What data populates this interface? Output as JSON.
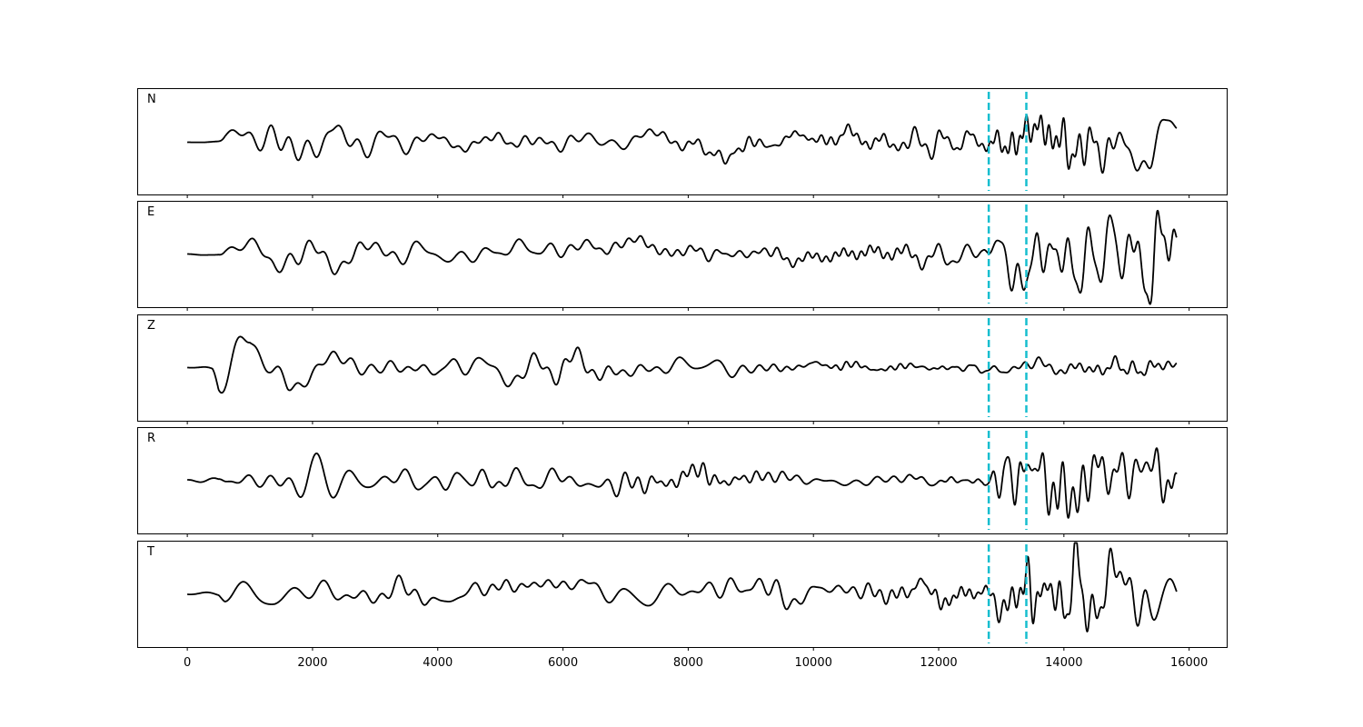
{
  "chart_data": {
    "type": "line",
    "panels": [
      {
        "name": "N",
        "label": "N"
      },
      {
        "name": "E",
        "label": "E"
      },
      {
        "name": "Z",
        "label": "Z"
      },
      {
        "name": "R",
        "label": "R"
      },
      {
        "name": "T",
        "label": "T"
      }
    ],
    "xlim": [
      -800,
      16600
    ],
    "x_range": [
      0,
      15800
    ],
    "ylim": [
      -1.2,
      1.2
    ],
    "x_ticks": [
      0,
      2000,
      4000,
      6000,
      8000,
      10000,
      12000,
      14000,
      16000
    ],
    "x_tick_labels": [
      "0",
      "2000",
      "4000",
      "6000",
      "8000",
      "10000",
      "12000",
      "14000",
      "16000"
    ],
    "y_ticks_visible": false,
    "shared_x": true,
    "markers": {
      "positions": [
        12800,
        13400
      ],
      "style": "dashed",
      "color": "#17becf"
    },
    "trace_color": "#000000",
    "grid": false,
    "envelopes": {
      "N": [
        [
          0,
          0.02
        ],
        [
          500,
          0.05
        ],
        [
          600,
          0.25
        ],
        [
          1200,
          0.4
        ],
        [
          1500,
          0.55
        ],
        [
          2000,
          0.4
        ],
        [
          3000,
          0.3
        ],
        [
          4000,
          0.2
        ],
        [
          5000,
          0.25
        ],
        [
          6000,
          0.35
        ],
        [
          7000,
          0.3
        ],
        [
          8000,
          0.35
        ],
        [
          9000,
          0.25
        ],
        [
          10000,
          0.2
        ],
        [
          11000,
          0.25
        ],
        [
          12000,
          0.3
        ],
        [
          12700,
          0.2
        ],
        [
          12800,
          0.35
        ],
        [
          13300,
          0.8
        ],
        [
          13500,
          0.7
        ],
        [
          13900,
          1.0
        ],
        [
          14500,
          0.85
        ],
        [
          15000,
          0.75
        ],
        [
          15400,
          1.0
        ],
        [
          15800,
          0.6
        ]
      ],
      "E": [
        [
          0,
          0.02
        ],
        [
          500,
          0.05
        ],
        [
          600,
          0.2
        ],
        [
          1000,
          0.35
        ],
        [
          1400,
          0.5
        ],
        [
          2200,
          0.35
        ],
        [
          3000,
          0.3
        ],
        [
          5000,
          0.25
        ],
        [
          6000,
          0.3
        ],
        [
          7000,
          0.3
        ],
        [
          8000,
          0.3
        ],
        [
          9000,
          0.25
        ],
        [
          10000,
          0.2
        ],
        [
          11000,
          0.25
        ],
        [
          12000,
          0.3
        ],
        [
          12700,
          0.2
        ],
        [
          12800,
          0.4
        ],
        [
          13300,
          0.9
        ],
        [
          13800,
          0.85
        ],
        [
          14500,
          0.9
        ],
        [
          15000,
          0.8
        ],
        [
          15300,
          1.0
        ],
        [
          15800,
          0.6
        ]
      ],
      "Z": [
        [
          0,
          0.02
        ],
        [
          400,
          0.05
        ],
        [
          500,
          0.4
        ],
        [
          800,
          0.7
        ],
        [
          1000,
          0.95
        ],
        [
          1300,
          0.6
        ],
        [
          1600,
          0.95
        ],
        [
          2000,
          0.45
        ],
        [
          3000,
          0.25
        ],
        [
          4000,
          0.2
        ],
        [
          5000,
          0.3
        ],
        [
          5800,
          0.35
        ],
        [
          6000,
          0.45
        ],
        [
          7000,
          0.2
        ],
        [
          8000,
          0.25
        ],
        [
          9000,
          0.15
        ],
        [
          10000,
          0.12
        ],
        [
          11000,
          0.1
        ],
        [
          12000,
          0.08
        ],
        [
          13000,
          0.12
        ],
        [
          14000,
          0.18
        ],
        [
          15000,
          0.2
        ],
        [
          15800,
          0.18
        ]
      ],
      "R": [
        [
          0,
          0.02
        ],
        [
          500,
          0.05
        ],
        [
          600,
          0.2
        ],
        [
          1200,
          0.35
        ],
        [
          1500,
          0.5
        ],
        [
          2000,
          0.35
        ],
        [
          3000,
          0.3
        ],
        [
          4000,
          0.2
        ],
        [
          5000,
          0.3
        ],
        [
          6000,
          0.3
        ],
        [
          7000,
          0.25
        ],
        [
          8000,
          0.3
        ],
        [
          9000,
          0.2
        ],
        [
          10000,
          0.15
        ],
        [
          11000,
          0.12
        ],
        [
          12000,
          0.1
        ],
        [
          12700,
          0.08
        ],
        [
          12800,
          0.3
        ],
        [
          13300,
          0.75
        ],
        [
          13500,
          0.6
        ],
        [
          13900,
          1.0
        ],
        [
          14500,
          0.75
        ],
        [
          15000,
          0.7
        ],
        [
          15400,
          0.9
        ],
        [
          15800,
          0.55
        ]
      ],
      "T": [
        [
          0,
          0.02
        ],
        [
          500,
          0.05
        ],
        [
          600,
          0.2
        ],
        [
          1000,
          0.35
        ],
        [
          1400,
          0.45
        ],
        [
          2000,
          0.35
        ],
        [
          3000,
          0.3
        ],
        [
          4000,
          0.25
        ],
        [
          5000,
          0.25
        ],
        [
          6000,
          0.3
        ],
        [
          7000,
          0.3
        ],
        [
          8000,
          0.25
        ],
        [
          9000,
          0.3
        ],
        [
          10000,
          0.25
        ],
        [
          11000,
          0.3
        ],
        [
          12000,
          0.3
        ],
        [
          12700,
          0.25
        ],
        [
          12800,
          0.4
        ],
        [
          13300,
          0.8
        ],
        [
          13800,
          0.7
        ],
        [
          14200,
          0.95
        ],
        [
          14800,
          0.8
        ],
        [
          15300,
          0.9
        ],
        [
          15800,
          0.6
        ]
      ]
    }
  }
}
